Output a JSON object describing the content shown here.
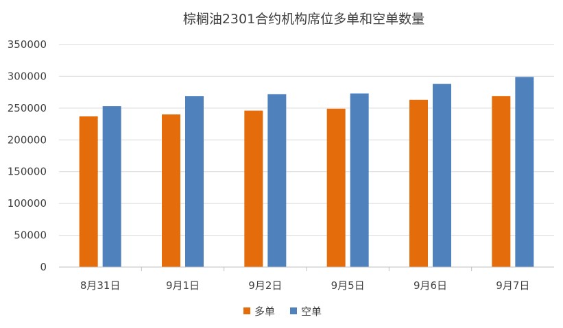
{
  "chart_data": {
    "type": "bar",
    "title": "棕榈油2301合约机构席位多单和空单数量",
    "xlabel": "",
    "ylabel": "",
    "categories": [
      "8月31日",
      "9月1日",
      "9月2日",
      "9月5日",
      "9月6日",
      "9月7日"
    ],
    "series": [
      {
        "name": "多单",
        "color": "#E46C0A",
        "values": [
          237000,
          240000,
          246000,
          249000,
          263000,
          269000
        ]
      },
      {
        "name": "空单",
        "color": "#4F81BD",
        "values": [
          253000,
          269000,
          272000,
          273000,
          288000,
          299000
        ]
      }
    ],
    "ylim": [
      0,
      350000
    ],
    "yticks": [
      "0",
      "50000",
      "100000",
      "150000",
      "200000",
      "250000",
      "300000",
      "350000"
    ],
    "grid": true,
    "legend": "bottom-center"
  }
}
